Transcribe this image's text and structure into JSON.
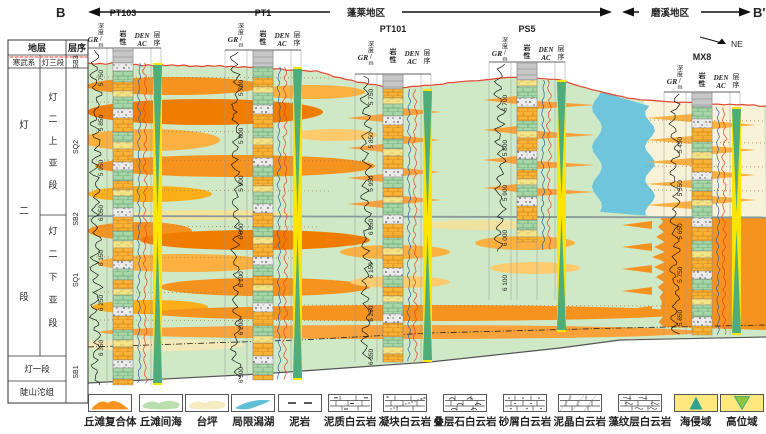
{
  "section_line": {
    "b_label": "B",
    "b_prime_label": "B'",
    "regions": [
      {
        "label": "蓬莱地区"
      },
      {
        "label": "磨溪地区"
      }
    ],
    "ne_label": "NE"
  },
  "strat_table": {
    "headers": {
      "strata": "地层",
      "sequence": "层序"
    },
    "cells": {
      "system": "寒武系",
      "member3": "灯三段",
      "sb3": "SB3",
      "formation": "灯二段",
      "upper_member": "灯二上亚段",
      "sq2": "SQ2",
      "sb2": "SB2",
      "lower_member": "灯二下亚段",
      "sq1": "SQ1",
      "member1": "灯一段",
      "doushantuo": "陡山沱组",
      "sb1": "SB1"
    }
  },
  "well_header": {
    "gr": "GR",
    "depth": "深度/m",
    "lithology": "岩性",
    "den": "DEN",
    "ac": "AC",
    "sequence": "层序"
  },
  "wells": [
    {
      "name": "PT103",
      "depth_labels": [
        "5 750",
        "5 850",
        "5 950",
        "6 050",
        "6 150",
        "6 250",
        "6 350"
      ]
    },
    {
      "name": "PT1",
      "depth_labels": [
        "5 700",
        "5 800",
        "5 900",
        "6 000",
        "6 100",
        "6 200",
        "6 300"
      ]
    },
    {
      "name": "PT101",
      "depth_labels": [
        "5 750",
        "5 850",
        "5 950",
        "6 050",
        "6 150",
        "6 250",
        "6 350"
      ]
    },
    {
      "name": "PS5",
      "depth_labels": [
        "5 700",
        "5 800",
        "5 900",
        "6 000",
        "6 100"
      ]
    },
    {
      "name": "MX8",
      "depth_labels": [
        "5 450",
        "5 550",
        "5 650",
        "5 750",
        "5 850"
      ]
    }
  ],
  "legend": {
    "items": [
      {
        "label": "丘滩复合体",
        "type": "mound"
      },
      {
        "label": "丘滩间海",
        "type": "greenblob"
      },
      {
        "label": "台坪",
        "type": "creamblob"
      },
      {
        "label": "局限潟湖",
        "type": "blueblob"
      },
      {
        "label": "泥岩",
        "type": "mud"
      },
      {
        "label": "泥质白云岩",
        "type": "muddolo"
      },
      {
        "label": "凝块白云岩",
        "type": "thrombolite"
      },
      {
        "label": "叠层石白云岩",
        "type": "stromatolite"
      },
      {
        "label": "砂屑白云岩",
        "type": "sanddolo"
      },
      {
        "label": "泥晶白云岩",
        "type": "micrite"
      },
      {
        "label": "藻纹层白云岩",
        "type": "algal"
      },
      {
        "label": "海侵域",
        "type": "tst"
      },
      {
        "label": "高位域",
        "type": "hst"
      }
    ]
  },
  "colors": {
    "mound_orange": "#F6921E",
    "intershoal_green": "#CFE8C6",
    "tidal_flat_cream": "#F8F2D8",
    "lagoon_blue": "#6FC5DB",
    "unconformity_red": "#E8432E",
    "sb2_gray": "#8A9A9A",
    "sequence_yellow": "#FFE400",
    "systems_tract_teal": "#2FA390",
    "den_blue": "#2B5FAC",
    "ac_red": "#E8432E",
    "gr_black": "#1A1A1A"
  }
}
